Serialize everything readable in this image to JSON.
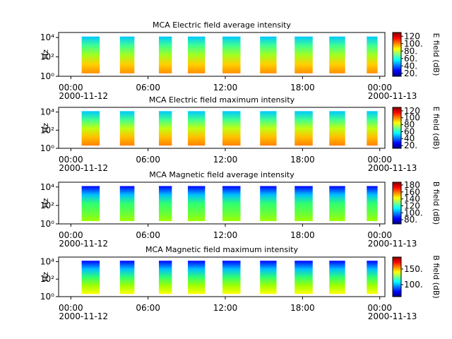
{
  "colormap": [
    "#00007f",
    "#0000ff",
    "#0080ff",
    "#00ffff",
    "#80ff80",
    "#ffff00",
    "#ff8000",
    "#ff0000",
    "#7f0000"
  ],
  "chart_data": [
    {
      "type": "spectrogram",
      "title": "MCA  Electric field average intensity",
      "ylabel": "Hz",
      "ylog": true,
      "ylim": [
        1,
        33000
      ],
      "yticks": [
        {
          "value": 1,
          "label": "10⁰"
        },
        {
          "value": 100,
          "label": "10²"
        },
        {
          "value": 10000,
          "label": "10⁴"
        }
      ],
      "xlim": [
        -0.95,
        24.4
      ],
      "xticks": [
        {
          "value": 0,
          "label": "00:00"
        },
        {
          "value": 6,
          "label": "06:00"
        },
        {
          "value": 12,
          "label": "12:00"
        },
        {
          "value": 18,
          "label": "18:00"
        },
        {
          "value": 24,
          "label": "00:00"
        }
      ],
      "xtick_dates": [
        "2000-11-12",
        null,
        null,
        null,
        "2000-11-13"
      ],
      "bursts": [
        [
          0.84,
          2.24
        ],
        [
          3.81,
          4.94
        ],
        [
          6.84,
          7.85
        ],
        [
          9.09,
          10.43
        ],
        [
          11.78,
          13.18
        ],
        [
          14.7,
          15.98
        ],
        [
          17.39,
          18.79
        ],
        [
          20.08,
          21.31
        ],
        [
          22.99,
          23.83
        ]
      ],
      "burst_freq": [
        2,
        12600
      ],
      "burst_colors": [
        "#00c8ff",
        "#40ff90",
        "#a0ff20",
        "#ffd000",
        "#ff9000"
      ],
      "clabel": "E field (dB)",
      "clim": [
        12,
        130
      ],
      "cticks": [
        {
          "value": 20,
          "label": "20."
        },
        {
          "value": 40,
          "label": "40."
        },
        {
          "value": 60,
          "label": "60."
        },
        {
          "value": 80,
          "label": "80."
        },
        {
          "value": 100,
          "label": "100."
        },
        {
          "value": 120,
          "label": "120"
        }
      ]
    },
    {
      "type": "spectrogram",
      "title": "MCA  Electric field maximum intensity",
      "ylabel": "Hz",
      "ylog": true,
      "ylim": [
        1,
        33000
      ],
      "yticks": [
        {
          "value": 1,
          "label": "10⁰"
        },
        {
          "value": 100,
          "label": "10²"
        },
        {
          "value": 10000,
          "label": "10⁴"
        }
      ],
      "xlim": [
        -0.95,
        24.4
      ],
      "xticks": [
        {
          "value": 0,
          "label": "00:00"
        },
        {
          "value": 6,
          "label": "06:00"
        },
        {
          "value": 12,
          "label": "12:00"
        },
        {
          "value": 18,
          "label": "18:00"
        },
        {
          "value": 24,
          "label": "00:00"
        }
      ],
      "xtick_dates": [
        "2000-11-12",
        null,
        null,
        null,
        "2000-11-13"
      ],
      "bursts": [
        [
          0.84,
          2.24
        ],
        [
          3.81,
          4.94
        ],
        [
          6.84,
          7.85
        ],
        [
          9.09,
          10.43
        ],
        [
          11.78,
          13.18
        ],
        [
          14.7,
          15.98
        ],
        [
          17.39,
          18.79
        ],
        [
          20.08,
          21.31
        ],
        [
          22.99,
          23.83
        ]
      ],
      "burst_freq": [
        2,
        12600
      ],
      "burst_colors": [
        "#00c8ff",
        "#40ff90",
        "#c0ff10",
        "#ffc000",
        "#ff8000"
      ],
      "clabel": "E field (dB)",
      "clim": [
        12,
        130
      ],
      "cticks": [
        {
          "value": 20,
          "label": "20."
        },
        40,
        60,
        80,
        100,
        120
      ]
    },
    {
      "type": "spectrogram",
      "title": "MCA  Magnetic field average intensity",
      "ylabel": "Hz",
      "ylog": true,
      "ylim": [
        1,
        33000
      ],
      "yticks": [
        {
          "value": 1,
          "label": "10⁰"
        },
        {
          "value": 100,
          "label": "10²"
        },
        {
          "value": 10000,
          "label": "10⁴"
        }
      ],
      "xlim": [
        -0.95,
        24.4
      ],
      "xticks": [
        {
          "value": 0,
          "label": "00:00"
        },
        {
          "value": 6,
          "label": "06:00"
        },
        {
          "value": 12,
          "label": "12:00"
        },
        {
          "value": 18,
          "label": "18:00"
        },
        {
          "value": 24,
          "label": "00:00"
        }
      ],
      "xtick_dates": [
        "2000-11-12",
        null,
        null,
        null,
        "2000-11-13"
      ],
      "bursts": [
        [
          0.84,
          2.24
        ],
        [
          3.81,
          4.94
        ],
        [
          6.84,
          7.85
        ],
        [
          9.09,
          10.43
        ],
        [
          11.78,
          13.18
        ],
        [
          14.7,
          15.98
        ],
        [
          17.39,
          18.79
        ],
        [
          20.08,
          21.31
        ],
        [
          22.99,
          23.83
        ]
      ],
      "burst_freq": [
        2,
        12600
      ],
      "burst_colors": [
        "#0000ff",
        "#00c0ff",
        "#30ff70",
        "#60ff40",
        "#a0ff00"
      ],
      "clabel": "B field (dB)",
      "clim": [
        68,
        188
      ],
      "cticks": [
        {
          "value": 80,
          "label": "80."
        },
        {
          "value": 100,
          "label": "100."
        },
        120,
        140,
        160,
        180
      ]
    },
    {
      "type": "spectrogram",
      "title": "MCA  Magnetic field maximum intensity",
      "ylabel": "Hz",
      "ylog": true,
      "ylim": [
        1,
        33000
      ],
      "yticks": [
        {
          "value": 1,
          "label": "10⁰"
        },
        {
          "value": 100,
          "label": "10²"
        },
        {
          "value": 10000,
          "label": "10⁴"
        }
      ],
      "xlim": [
        -0.95,
        24.4
      ],
      "xticks": [
        {
          "value": 0,
          "label": "00:00"
        },
        {
          "value": 6,
          "label": "06:00"
        },
        {
          "value": 12,
          "label": "12:00"
        },
        {
          "value": 18,
          "label": "18:00"
        },
        {
          "value": 24,
          "label": "00:00"
        }
      ],
      "xtick_dates": [
        "2000-11-12",
        null,
        null,
        null,
        "2000-11-13"
      ],
      "bursts": [
        [
          0.84,
          2.24
        ],
        [
          3.81,
          4.94
        ],
        [
          6.84,
          7.85
        ],
        [
          9.09,
          10.43
        ],
        [
          11.78,
          13.18
        ],
        [
          14.7,
          15.98
        ],
        [
          17.39,
          18.79
        ],
        [
          20.08,
          21.31
        ],
        [
          22.99,
          23.83
        ]
      ],
      "burst_freq": [
        2,
        12600
      ],
      "burst_colors": [
        "#0000ff",
        "#00c0ff",
        "#30ff70",
        "#a0ff00",
        "#ffff00"
      ],
      "clabel": "B field (dB)",
      "clim": [
        62,
        188
      ],
      "cticks": [
        {
          "value": 100,
          "label": "100."
        },
        {
          "value": 150,
          "label": "150."
        }
      ]
    }
  ]
}
